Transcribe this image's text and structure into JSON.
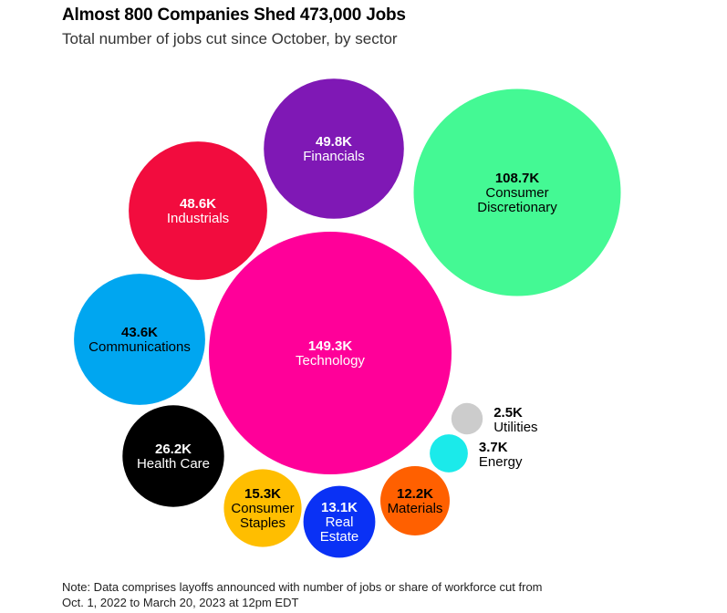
{
  "header": {
    "title": "Almost 800 Companies Shed 473,000 Jobs",
    "subtitle": "Total number of jobs cut since October, by sector"
  },
  "footer": {
    "note_line1": "Note: Data comprises layoffs announced with number of jobs or share of workforce cut from",
    "note_line2": "Oct. 1, 2022 to March 20, 2023 at 12pm EDT"
  },
  "chart_data": {
    "type": "bubble",
    "title": "Almost 800 Companies Shed 473,000 Jobs",
    "subtitle": "Total number of jobs cut since October, by sector",
    "unit": "thousand jobs",
    "legend": "none",
    "grid": false,
    "series": [
      {
        "name": "Technology",
        "value": 149.3,
        "label": "149.3K",
        "lines": [
          "Technology"
        ],
        "color": "#FF0099",
        "text_color": "#ffffff",
        "label_position": "inside"
      },
      {
        "name": "Consumer Discretionary",
        "value": 108.7,
        "label": "108.7K",
        "lines": [
          "Consumer",
          "Discretionary"
        ],
        "color": "#44F994",
        "text_color": "#000000",
        "label_position": "inside"
      },
      {
        "name": "Financials",
        "value": 49.8,
        "label": "49.8K",
        "lines": [
          "Financials"
        ],
        "color": "#7F18B5",
        "text_color": "#ffffff",
        "label_position": "inside"
      },
      {
        "name": "Industrials",
        "value": 48.6,
        "label": "48.6K",
        "lines": [
          "Industrials"
        ],
        "color": "#F20C3E",
        "text_color": "#ffffff",
        "label_position": "inside"
      },
      {
        "name": "Communications",
        "value": 43.6,
        "label": "43.6K",
        "lines": [
          "Communications"
        ],
        "color": "#00A6F0",
        "text_color": "#000000",
        "label_position": "inside"
      },
      {
        "name": "Health Care",
        "value": 26.2,
        "label": "26.2K",
        "lines": [
          "Health Care"
        ],
        "color": "#000000",
        "text_color": "#ffffff",
        "label_position": "inside"
      },
      {
        "name": "Consumer Staples",
        "value": 15.3,
        "label": "15.3K",
        "lines": [
          "Consumer",
          "Staples"
        ],
        "color": "#FFBE00",
        "text_color": "#000000",
        "label_position": "inside"
      },
      {
        "name": "Real Estate",
        "value": 13.1,
        "label": "13.1K",
        "lines": [
          "Real",
          "Estate"
        ],
        "color": "#0A31F5",
        "text_color": "#ffffff",
        "label_position": "inside"
      },
      {
        "name": "Materials",
        "value": 12.2,
        "label": "12.2K",
        "lines": [
          "Materials"
        ],
        "color": "#FF6000",
        "text_color": "#000000",
        "label_position": "inside"
      },
      {
        "name": "Energy",
        "value": 3.7,
        "label": "3.7K",
        "lines": [
          "Energy"
        ],
        "color": "#1BEAEA",
        "text_color": "#000000",
        "label_position": "outside-right"
      },
      {
        "name": "Utilities",
        "value": 2.5,
        "label": "2.5K",
        "lines": [
          "Utilities"
        ],
        "color": "#CCCCCC",
        "text_color": "#000000",
        "label_position": "outside-right"
      }
    ]
  }
}
